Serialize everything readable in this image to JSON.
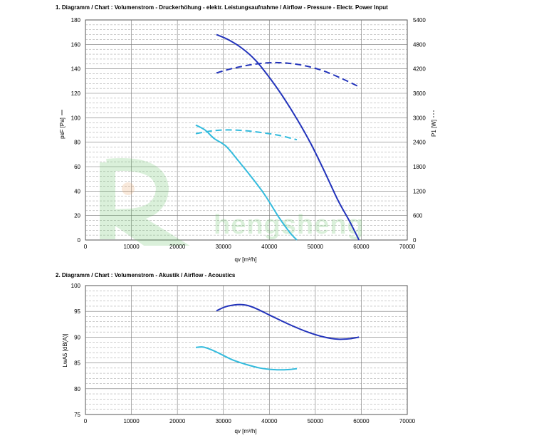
{
  "chart_data": [
    {
      "type": "line",
      "title": "1. Diagramm / Chart :   Volumenstrom - Druckerhöhung - elektr. Leistungsaufnahme / Airflow - Pressure - Electr. Power Input",
      "xlabel": "qv [m³/h]",
      "ylabel": "psF [Pa]",
      "y2label": "P1 [W]",
      "xlim": [
        0,
        70000
      ],
      "ylim": [
        0,
        180
      ],
      "y2lim": [
        0,
        5400
      ],
      "xticks": [
        "0",
        "10000",
        "20000",
        "30000",
        "40000",
        "50000",
        "60000",
        "70000"
      ],
      "yticks": [
        "0",
        "20",
        "40",
        "60",
        "80",
        "100",
        "120",
        "140",
        "160",
        "180"
      ],
      "y2ticks": [
        "0",
        "600",
        "1200",
        "1800",
        "2400",
        "3000",
        "3600",
        "4200",
        "4800",
        "5400"
      ],
      "grid": true,
      "series": [
        {
          "axis": "left",
          "style": "solid",
          "color": "#2233bb",
          "x": [
            28500,
            31000,
            34000,
            37000,
            40000,
            43000,
            46000,
            49000,
            52000,
            55000,
            57500,
            59500
          ],
          "y": [
            168,
            164,
            157,
            147,
            133,
            117,
            99,
            79,
            56,
            32,
            15,
            0
          ]
        },
        {
          "axis": "right",
          "style": "dashed",
          "color": "#2233bb",
          "x": [
            28500,
            32000,
            36000,
            40000,
            44000,
            48000,
            52000,
            56000,
            59500
          ],
          "y": [
            4100,
            4210,
            4300,
            4350,
            4340,
            4270,
            4140,
            3950,
            3760
          ]
        },
        {
          "axis": "left",
          "style": "solid",
          "color": "#33bbdd",
          "x": [
            24000,
            26000,
            28000,
            30500,
            33000,
            36000,
            39000,
            42000,
            44500,
            46000
          ],
          "y": [
            94,
            90,
            83,
            77,
            66,
            52,
            37,
            19,
            6,
            0
          ]
        },
        {
          "axis": "right",
          "style": "dashed",
          "color": "#33bbdd",
          "x": [
            24000,
            27000,
            30000,
            34000,
            38000,
            42000,
            46000
          ],
          "y": [
            2610,
            2670,
            2700,
            2690,
            2640,
            2570,
            2460
          ]
        }
      ]
    },
    {
      "type": "line",
      "title": "2. Diagramm / Chart :   Volumenstrom - Akustik / Airflow - Acoustics",
      "xlabel": "qv [m³/h]",
      "ylabel": "LwA5 [dB(A)]",
      "xlim": [
        0,
        70000
      ],
      "ylim": [
        75,
        100
      ],
      "xticks": [
        "0",
        "10000",
        "20000",
        "30000",
        "40000",
        "50000",
        "60000",
        "70000"
      ],
      "yticks": [
        "75",
        "80",
        "85",
        "90",
        "95",
        "100"
      ],
      "grid": true,
      "series": [
        {
          "style": "solid",
          "color": "#2233bb",
          "x": [
            28500,
            30500,
            33000,
            35000,
            37000,
            40000,
            44000,
            48000,
            52000,
            55000,
            57500,
            59500
          ],
          "y": [
            95.1,
            95.9,
            96.3,
            96.2,
            95.6,
            94.3,
            92.6,
            91.1,
            90.0,
            89.6,
            89.7,
            90.0
          ]
        },
        {
          "style": "solid",
          "color": "#33bbdd",
          "x": [
            24000,
            25500,
            27000,
            29000,
            32000,
            35000,
            38000,
            41000,
            44000,
            46000
          ],
          "y": [
            88.0,
            88.1,
            87.7,
            86.9,
            85.6,
            84.7,
            84.0,
            83.7,
            83.7,
            83.9
          ]
        }
      ]
    }
  ],
  "watermark": {
    "text": "hengsheng",
    "color": "#5bbf5b"
  }
}
